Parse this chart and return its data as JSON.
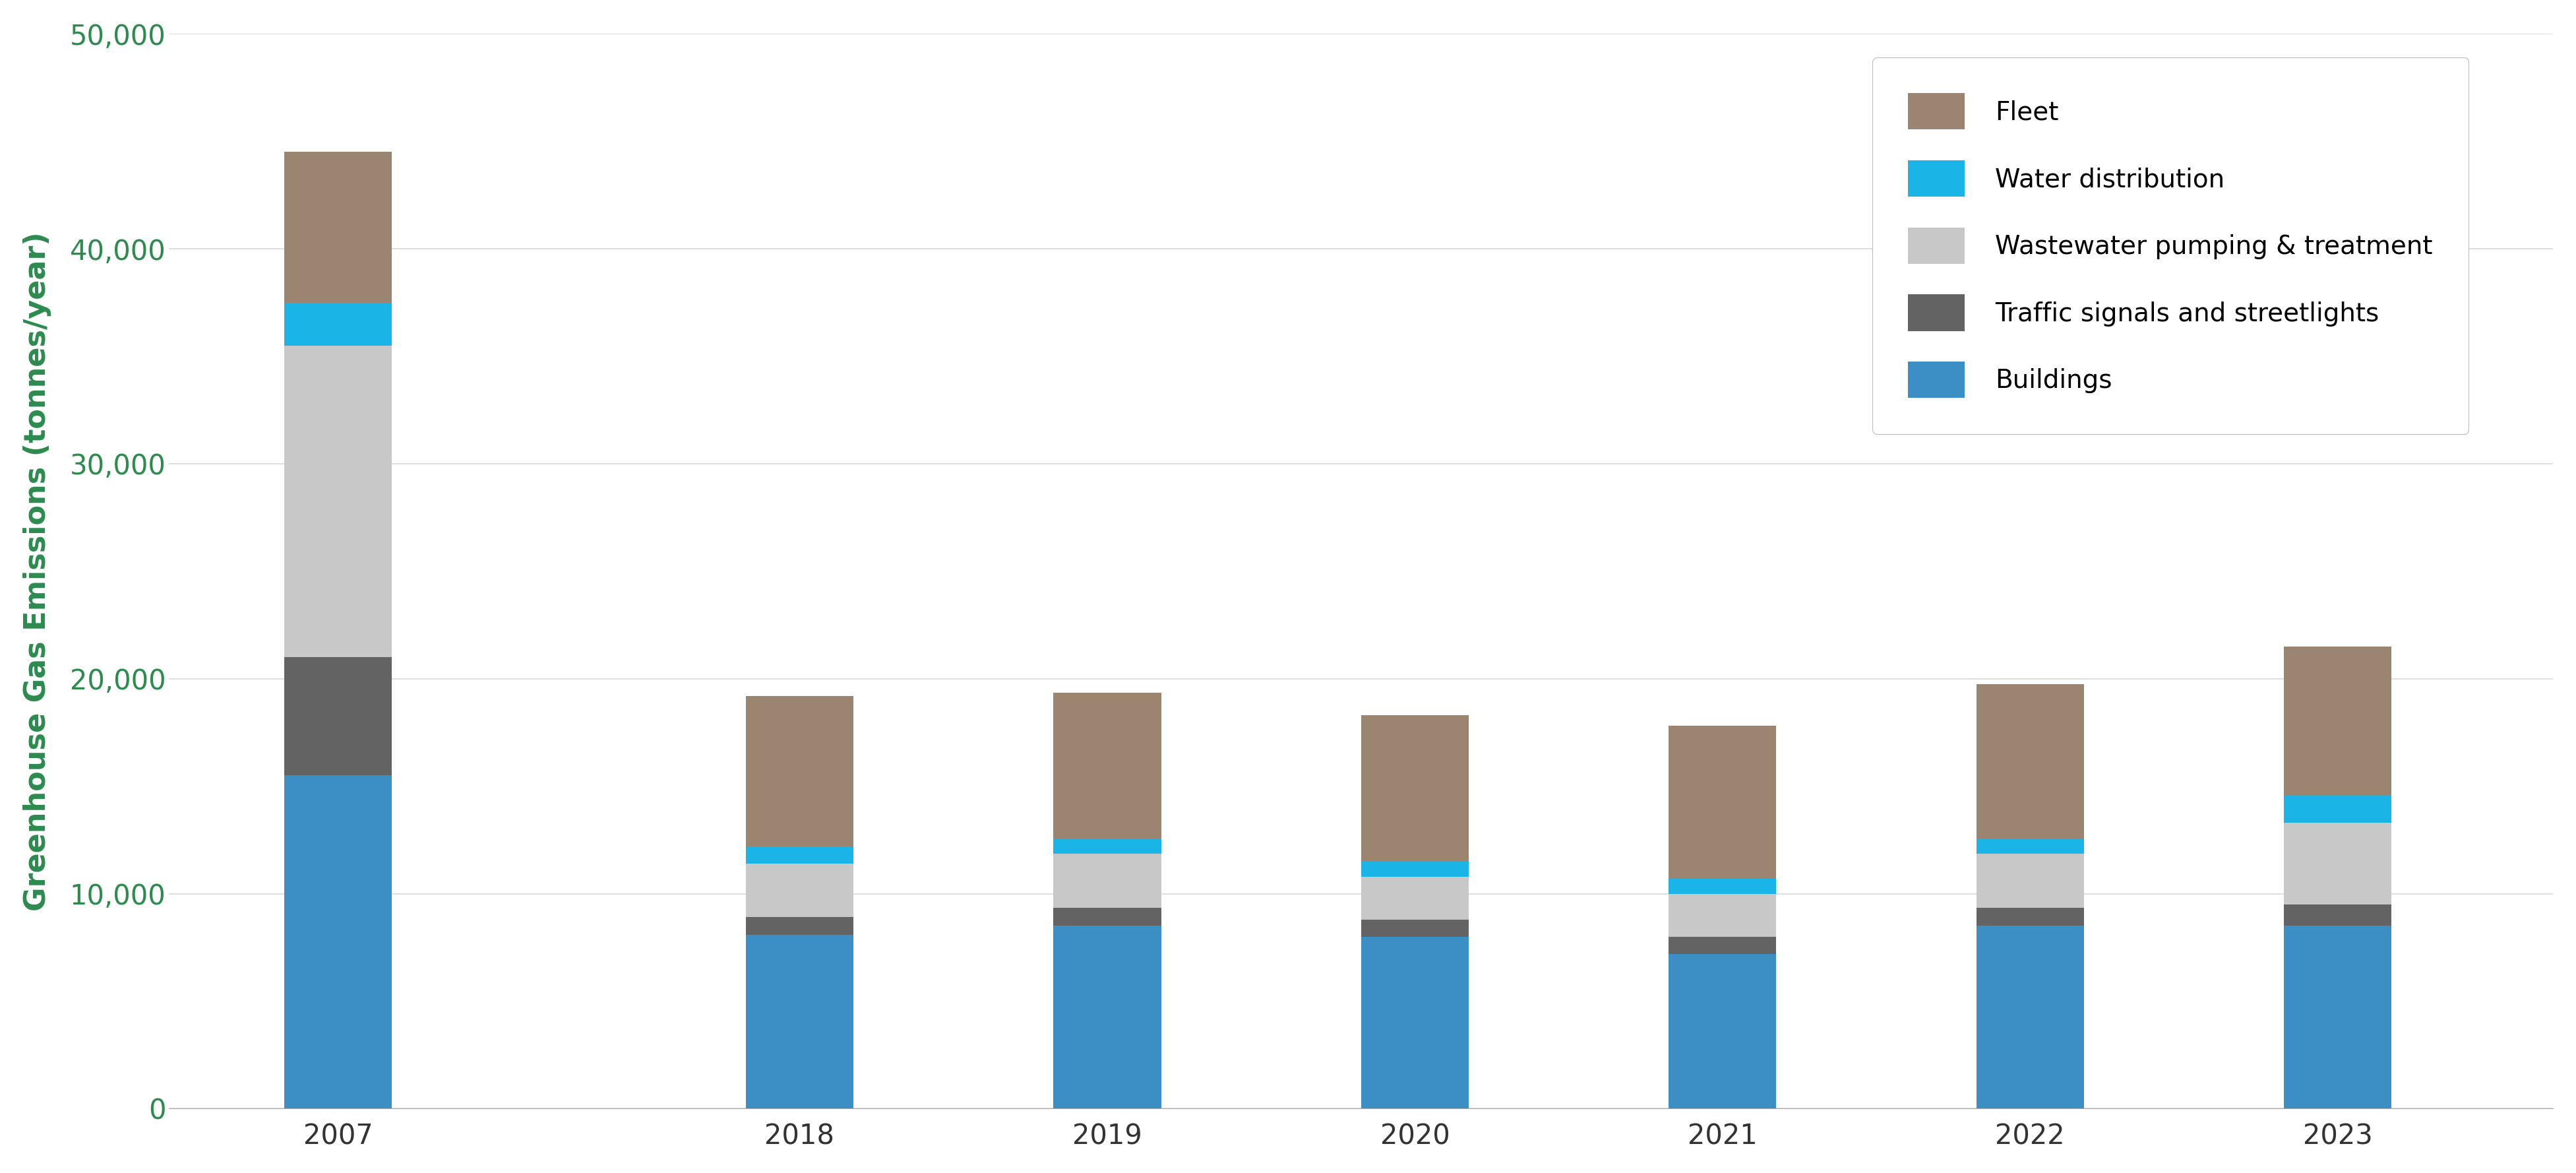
{
  "years": [
    "2007",
    "2018",
    "2019",
    "2020",
    "2021",
    "2022",
    "2023"
  ],
  "categories": [
    "Buildings",
    "Traffic signals and streetlights",
    "Wastewater pumping & treatment",
    "Water distribution",
    "Fleet"
  ],
  "colors": [
    "#3B8FC4",
    "#636363",
    "#C8C8C8",
    "#1BB4E6",
    "#9B8470"
  ],
  "values": {
    "Buildings": [
      15500,
      8100,
      8500,
      8000,
      7200,
      8500,
      8500
    ],
    "Traffic signals and streetlights": [
      5500,
      800,
      850,
      800,
      800,
      850,
      1000
    ],
    "Wastewater pumping & treatment": [
      14500,
      2500,
      2500,
      2000,
      2000,
      2500,
      3800
    ],
    "Water distribution": [
      2000,
      800,
      700,
      700,
      700,
      700,
      1300
    ],
    "Fleet": [
      7000,
      7000,
      6800,
      6800,
      7100,
      7200,
      6900
    ]
  },
  "ylim": [
    0,
    50000
  ],
  "yticks": [
    0,
    10000,
    20000,
    30000,
    40000,
    50000
  ],
  "ytick_labels": [
    "0",
    "10,000",
    "20,000",
    "30,000",
    "40,000",
    "50,000"
  ],
  "ylabel": "Greenhouse Gas Emissions (tonnes/year)",
  "ylabel_color": "#2D8B4E",
  "tick_color": "#2D8B4E",
  "background_color": "#FFFFFF",
  "grid_color": "#D8D8D8",
  "legend_labels_order": [
    "Fleet",
    "Water distribution",
    "Wastewater pumping & treatment",
    "Traffic signals and streetlights",
    "Buildings"
  ],
  "bar_width": 0.35,
  "x_positions": [
    0,
    1.5,
    2.5,
    3.5,
    4.5,
    5.5,
    6.5
  ],
  "xlim_left": -0.55,
  "xlim_right": 7.2
}
